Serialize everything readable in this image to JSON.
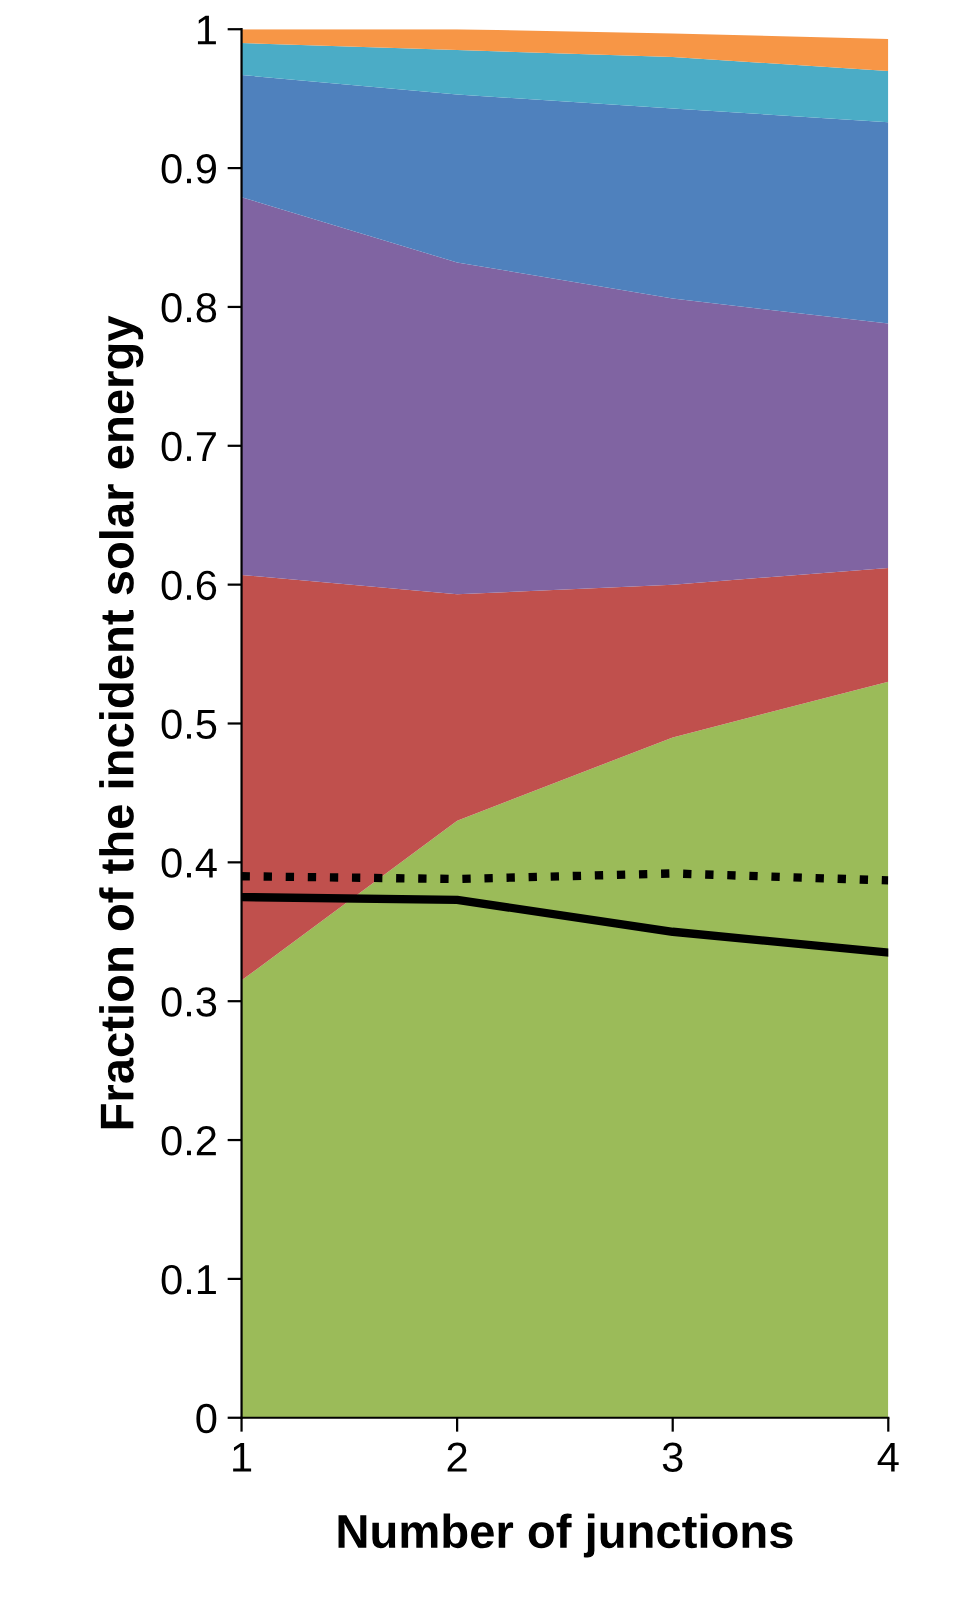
{
  "chart_data": {
    "type": "area",
    "stacked": true,
    "xlabel": "Number of junctions",
    "ylabel": "Fraction of the incident solar energy",
    "x": [
      1,
      2,
      3,
      4
    ],
    "series": [
      {
        "color": "#9bbb59",
        "values": [
          0.315,
          0.43,
          0.49,
          0.53
        ]
      },
      {
        "color": "#c0504d",
        "values": [
          0.292,
          0.163,
          0.11,
          0.082
        ]
      },
      {
        "color": "#8064a2",
        "values": [
          0.272,
          0.239,
          0.206,
          0.176
        ]
      },
      {
        "color": "#4f81bd",
        "values": [
          0.088,
          0.121,
          0.137,
          0.145
        ]
      },
      {
        "color": "#4bacc6",
        "values": [
          0.023,
          0.032,
          0.037,
          0.037
        ]
      },
      {
        "color": "#f79646",
        "values": [
          0.01,
          0.015,
          0.017,
          0.023
        ]
      },
      {
        "type": "line",
        "color": "#000000",
        "line_style": "solid",
        "values": [
          0.375,
          0.373,
          0.35,
          0.335
        ]
      },
      {
        "type": "line",
        "color": "#000000",
        "line_style": "dotted",
        "values": [
          0.39,
          0.388,
          0.392,
          0.387
        ]
      }
    ],
    "xlim": [
      1,
      4
    ],
    "xticks": [
      1,
      2,
      3,
      4
    ],
    "ylim": [
      0,
      1
    ],
    "yticks": [
      0,
      0.1,
      0.2,
      0.3,
      0.4,
      0.5,
      0.6,
      0.7,
      0.8,
      0.9,
      1
    ],
    "grid": false,
    "legend": false
  }
}
